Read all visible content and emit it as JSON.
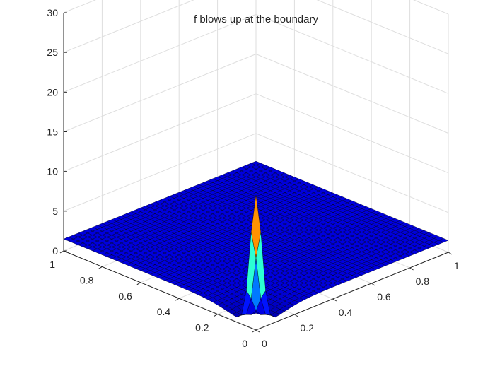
{
  "chart_data": {
    "type": "surface",
    "title": "f blows up  at the boundary",
    "xlabel": "",
    "ylabel": "",
    "zlabel": "",
    "xlim": [
      0,
      1
    ],
    "ylim": [
      0,
      1
    ],
    "zlim": [
      0,
      30
    ],
    "x_ticks": [
      0,
      0.2,
      0.4,
      0.6,
      0.8,
      1
    ],
    "x_tick_labels": [
      "0",
      "0.2",
      "0.4",
      "0.6",
      "0.8",
      "1"
    ],
    "y_ticks": [
      0,
      0.2,
      0.4,
      0.6,
      0.8,
      1
    ],
    "y_tick_labels": [
      "0",
      "0.2",
      "0.4",
      "0.6",
      "0.8",
      "1"
    ],
    "z_ticks": [
      0,
      5,
      10,
      15,
      20,
      25,
      30
    ],
    "z_tick_labels": [
      "0",
      "5",
      "10",
      "15",
      "20",
      "25",
      "30"
    ],
    "grid": true,
    "colormap": "jet",
    "edge_color": "#000000",
    "surface": {
      "description_values": {
        "flat_level": 1.5,
        "peak_value": 17,
        "peak_location": [
          0,
          0
        ],
        "dip_value": 0.2
      }
    }
  }
}
